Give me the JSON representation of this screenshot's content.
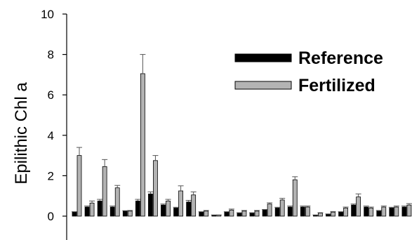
{
  "chart_data": {
    "type": "bar",
    "title": "",
    "xlabel": "",
    "ylabel": "Epilithic Chl a",
    "ylim": [
      0,
      10
    ],
    "yticks": [
      "0",
      "2",
      "4",
      "6",
      "8",
      "10"
    ],
    "legend_position": "top-right",
    "grid": false,
    "series": [
      {
        "name": "Reference",
        "color": "#000000",
        "values": [
          0.2,
          0.45,
          0.75,
          0.45,
          0.25,
          0.75,
          1.1,
          0.55,
          0.4,
          0.7,
          0.2,
          0.05,
          0.2,
          0.15,
          0.15,
          0.3,
          0.4,
          0.45,
          0.45,
          0.05,
          0.1,
          0.2,
          0.55,
          0.45,
          0.25,
          0.4,
          0.45
        ],
        "errors": [
          0.02,
          0.05,
          0.08,
          0.05,
          0.02,
          0.08,
          0.1,
          0.05,
          0.04,
          0.08,
          0.02,
          0.01,
          0.02,
          0.02,
          0.02,
          0.03,
          0.04,
          0.05,
          0.05,
          0.01,
          0.01,
          0.02,
          0.05,
          0.05,
          0.03,
          0.04,
          0.05
        ]
      },
      {
        "name": "Fertilized",
        "color": "#b3b3b3",
        "values": [
          3.0,
          0.65,
          2.45,
          1.4,
          0.25,
          7.05,
          2.75,
          0.75,
          1.25,
          1.05,
          0.25,
          0.05,
          0.3,
          0.25,
          0.25,
          0.6,
          0.8,
          1.8,
          0.45,
          0.15,
          0.2,
          0.4,
          0.95,
          0.4,
          0.45,
          0.45,
          0.55
        ],
        "errors": [
          0.4,
          0.1,
          0.35,
          0.12,
          0.03,
          0.95,
          0.25,
          0.08,
          0.25,
          0.15,
          0.03,
          0.01,
          0.05,
          0.03,
          0.03,
          0.06,
          0.08,
          0.15,
          0.05,
          0.02,
          0.03,
          0.05,
          0.15,
          0.05,
          0.05,
          0.05,
          0.07
        ]
      }
    ]
  }
}
